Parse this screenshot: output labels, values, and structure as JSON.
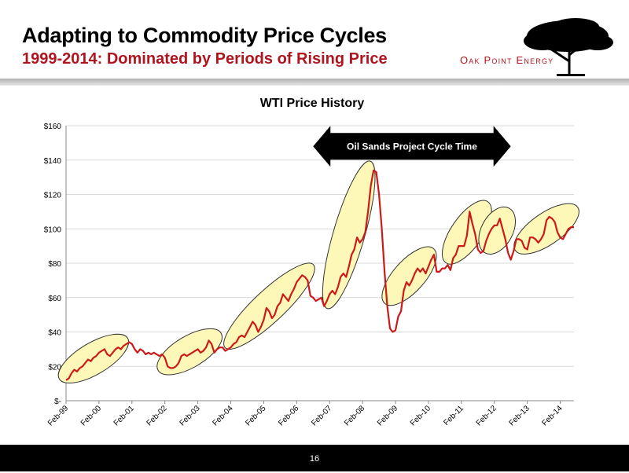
{
  "slide": {
    "title": "Adapting to Commodity Price Cycles",
    "subtitle": "1999-2014: Dominated by Periods of Rising Price",
    "logo_text": "Oak Point Energy",
    "page_number": "16"
  },
  "colors": {
    "subtitle": "#b0141e",
    "line": "#cc1a1a",
    "highlight_fill": "#fdf8b8",
    "arrow": "#000000"
  },
  "chart_data": {
    "type": "line",
    "title": "WTI Price History",
    "series": [
      {
        "values": [
          12,
          13,
          16,
          18,
          17,
          19,
          20,
          22,
          24,
          23,
          25,
          26,
          28,
          29,
          30,
          27,
          26,
          28,
          30,
          31,
          30,
          32,
          33,
          34,
          33,
          30,
          28,
          30,
          29,
          27,
          28,
          27,
          28,
          27,
          26,
          27,
          25,
          20,
          19,
          19,
          20,
          22,
          26,
          27,
          26,
          27,
          28,
          29,
          30,
          28,
          29,
          31,
          35,
          33,
          28,
          30,
          31,
          31,
          29,
          30,
          31,
          33,
          34,
          37,
          38,
          37,
          40,
          43,
          46,
          44,
          40,
          43,
          47,
          54,
          52,
          48,
          50,
          55,
          57,
          62,
          60,
          58,
          62,
          65,
          69,
          71,
          73,
          72,
          70,
          61,
          60,
          58,
          59,
          60,
          55,
          58,
          62,
          64,
          62,
          66,
          72,
          74,
          72,
          78,
          85,
          88,
          95,
          92,
          94,
          98,
          110,
          125,
          134,
          133,
          120,
          100,
          75,
          55,
          42,
          40,
          41,
          49,
          52,
          64,
          69,
          67,
          70,
          74,
          77,
          75,
          77,
          74,
          78,
          82,
          85,
          75,
          75,
          77,
          77,
          79,
          76,
          83,
          85,
          90,
          90,
          90,
          96,
          110,
          103,
          97,
          88,
          86,
          87,
          93,
          97,
          100,
          102,
          102,
          106,
          100,
          94,
          86,
          82,
          87,
          94,
          94,
          93,
          89,
          88,
          95,
          95,
          94,
          92,
          94,
          97,
          105,
          107,
          106,
          104,
          98,
          95,
          94,
          97,
          100,
          101,
          101
        ]
      }
    ],
    "x_ticks": [
      "Feb-99",
      "Feb-00",
      "Feb-01",
      "Feb-02",
      "Feb-03",
      "Feb-04",
      "Feb-05",
      "Feb-06",
      "Feb-07",
      "Feb-08",
      "Feb-09",
      "Feb-10",
      "Feb-11",
      "Feb-12",
      "Feb-13",
      "Feb-14"
    ],
    "y_ticks": [
      "$-",
      "$20",
      "$40",
      "$60",
      "$80",
      "$100",
      "$120",
      "$140",
      "$160"
    ],
    "ylim": [
      0,
      160
    ],
    "grid": "horizontal",
    "annotation": {
      "label": "Oil Sands Project Cycle Time",
      "from_month_index": 90,
      "to_month_index": 162,
      "y_value": 148
    },
    "highlighted_periods": [
      {
        "start": 0,
        "end": 20,
        "y_from": 15,
        "y_to": 34
      },
      {
        "start": 36,
        "end": 54,
        "y_from": 20,
        "y_to": 37
      },
      {
        "start": 60,
        "end": 88,
        "y_from": 34,
        "y_to": 76
      },
      {
        "start": 96,
        "end": 110,
        "y_from": 58,
        "y_to": 135
      },
      {
        "start": 118,
        "end": 132,
        "y_from": 60,
        "y_to": 85
      },
      {
        "start": 140,
        "end": 152,
        "y_from": 84,
        "y_to": 112
      },
      {
        "start": 154,
        "end": 160,
        "y_from": 90,
        "y_to": 108
      },
      {
        "start": 166,
        "end": 184,
        "y_from": 90,
        "y_to": 110
      }
    ]
  }
}
